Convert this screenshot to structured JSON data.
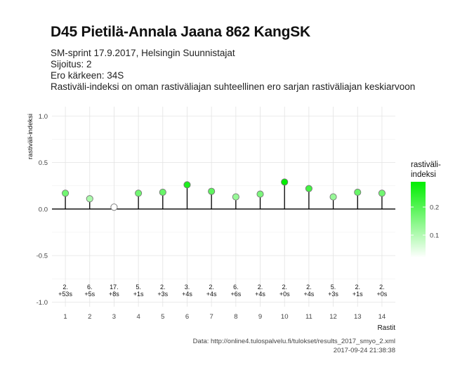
{
  "header": {
    "title": "D45 Pietilä-Annala Jaana 862 KangSK",
    "line1": "SM-sprint 17.9.2017, Helsingin Suunnistajat",
    "line2": "Sijoitus: 2",
    "line3": "Ero kärkeen: 34S",
    "line4": "Rastiväli-indeksi on oman rastiväliajan suhteellinen ero sarjan rastiväliajan keskiarvoon"
  },
  "footer": {
    "source": "Data: http://online4.tulospalvelu.fi/tulokset/results_2017_smyo_2.xml",
    "timestamp": "2017-09-24 21:38:38"
  },
  "chart_data": {
    "type": "scatter",
    "style": "lollipop",
    "xlabel": "Rastit",
    "ylabel": "rastiväli-indeksi",
    "ylim": [
      -1.05,
      1.1
    ],
    "yticks": [
      1.0,
      0.5,
      0.0,
      -0.5,
      -1.0
    ],
    "ytick_labels": [
      "1.0",
      "0.5",
      "0.0",
      "-0.5",
      "-1.0"
    ],
    "x": [
      1,
      2,
      3,
      4,
      5,
      6,
      7,
      8,
      9,
      10,
      11,
      12,
      13,
      14
    ],
    "values": [
      0.17,
      0.11,
      0.02,
      0.17,
      0.18,
      0.26,
      0.19,
      0.13,
      0.16,
      0.29,
      0.22,
      0.13,
      0.18,
      0.17
    ],
    "rank_labels": [
      "2.",
      "6.",
      "17.",
      "5.",
      "2.",
      "3.",
      "2.",
      "6.",
      "2.",
      "2.",
      "2.",
      "5.",
      "2.",
      "2."
    ],
    "diff_labels": [
      "+53s",
      "+5s",
      "+8s",
      "+1s",
      "+3s",
      "+4s",
      "+4s",
      "+6s",
      "+4s",
      "+0s",
      "+4s",
      "+3s",
      "+1s",
      "+0s"
    ],
    "grid": true,
    "legend": {
      "title_line1": "rastiväli-",
      "title_line2": "indeksi",
      "placement": "right",
      "ticks": [
        0.2,
        0.1
      ],
      "tick_labels": [
        "0.2",
        "0.1"
      ],
      "color_low": "#ffffff",
      "color_high": "#00ee00"
    }
  }
}
